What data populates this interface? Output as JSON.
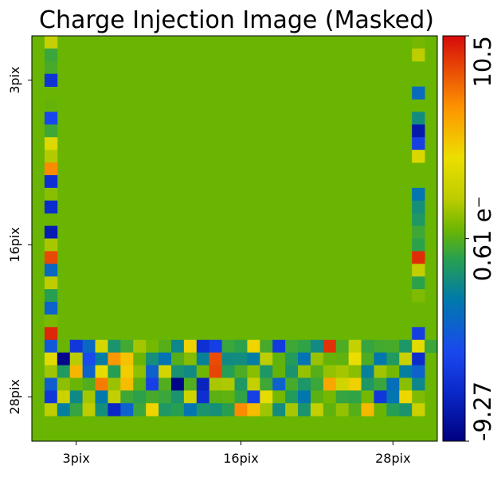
{
  "chart_data": {
    "type": "heatmap",
    "title": "Charge Injection Image (Masked)",
    "grid_size": 32,
    "x_ticks": [
      {
        "value": 3,
        "label": "3pix"
      },
      {
        "value": 16,
        "label": "16pix"
      },
      {
        "value": 28,
        "label": "28pix"
      }
    ],
    "y_ticks": [
      {
        "value": 3,
        "label": "3pix"
      },
      {
        "value": 16,
        "label": "16pix"
      },
      {
        "value": 28,
        "label": "28pix"
      }
    ],
    "colorbar": {
      "min": -9.27,
      "max": 10.5,
      "min_label": "-9.27",
      "max_label": "10.5",
      "mid_label": "0.61 e⁻",
      "mid_value": 0.61
    },
    "background_value": 0.61,
    "grid": false,
    "colors": {
      "background": "#6ab502",
      "frame": "#000000"
    },
    "rows": [
      [
        null,
        2.9,
        null,
        null,
        null,
        null,
        null,
        null,
        null,
        null,
        null,
        null,
        null,
        null,
        null,
        null,
        null,
        null,
        null,
        null,
        null,
        null,
        null,
        null,
        null,
        null,
        null,
        null,
        null,
        null,
        1.2,
        null
      ],
      [
        null,
        0.0,
        null,
        null,
        null,
        null,
        null,
        null,
        null,
        null,
        null,
        null,
        null,
        null,
        null,
        null,
        null,
        null,
        null,
        null,
        null,
        null,
        null,
        null,
        null,
        null,
        null,
        null,
        null,
        null,
        2.6,
        null
      ],
      [
        null,
        0.3,
        null,
        null,
        null,
        null,
        null,
        null,
        null,
        null,
        null,
        null,
        null,
        null,
        null,
        null,
        null,
        null,
        null,
        null,
        null,
        null,
        null,
        null,
        null,
        null,
        null,
        null,
        null,
        null,
        null,
        null
      ],
      [
        null,
        -6.2,
        null,
        null,
        null,
        null,
        null,
        null,
        null,
        null,
        null,
        null,
        null,
        null,
        null,
        null,
        null,
        null,
        null,
        null,
        null,
        null,
        null,
        null,
        null,
        null,
        null,
        null,
        null,
        null,
        null,
        null
      ],
      [
        null,
        null,
        null,
        null,
        null,
        null,
        null,
        null,
        null,
        null,
        null,
        null,
        null,
        null,
        null,
        null,
        null,
        null,
        null,
        null,
        null,
        null,
        null,
        null,
        null,
        null,
        null,
        null,
        null,
        null,
        -3.1,
        null
      ],
      [
        null,
        0.9,
        null,
        null,
        null,
        null,
        null,
        null,
        null,
        null,
        null,
        null,
        null,
        null,
        null,
        null,
        null,
        null,
        null,
        null,
        null,
        null,
        null,
        null,
        null,
        null,
        null,
        null,
        null,
        null,
        null,
        null
      ],
      [
        null,
        -5.0,
        null,
        null,
        null,
        null,
        null,
        null,
        null,
        null,
        null,
        null,
        null,
        null,
        null,
        null,
        null,
        null,
        null,
        null,
        null,
        null,
        null,
        null,
        null,
        null,
        null,
        null,
        null,
        null,
        -1.4,
        null
      ],
      [
        null,
        0.1,
        null,
        null,
        null,
        null,
        null,
        null,
        null,
        null,
        null,
        null,
        null,
        null,
        null,
        null,
        null,
        null,
        null,
        null,
        null,
        null,
        null,
        null,
        null,
        null,
        null,
        null,
        null,
        null,
        -7.8,
        null
      ],
      [
        null,
        3.9,
        null,
        null,
        null,
        null,
        null,
        null,
        null,
        null,
        null,
        null,
        null,
        null,
        null,
        null,
        null,
        null,
        null,
        null,
        null,
        null,
        null,
        null,
        null,
        null,
        null,
        null,
        null,
        null,
        -5.4,
        null
      ],
      [
        null,
        2.4,
        null,
        null,
        null,
        null,
        null,
        null,
        null,
        null,
        null,
        null,
        null,
        null,
        null,
        null,
        null,
        null,
        null,
        null,
        null,
        null,
        null,
        null,
        null,
        null,
        null,
        null,
        null,
        null,
        3.8,
        null
      ],
      [
        null,
        7.2,
        null,
        null,
        null,
        null,
        null,
        null,
        null,
        null,
        null,
        null,
        null,
        null,
        null,
        null,
        null,
        null,
        null,
        null,
        null,
        null,
        null,
        null,
        null,
        null,
        null,
        null,
        null,
        null,
        null,
        null
      ],
      [
        null,
        -6.4,
        null,
        null,
        null,
        null,
        null,
        null,
        null,
        null,
        null,
        null,
        null,
        null,
        null,
        null,
        null,
        null,
        null,
        null,
        null,
        null,
        null,
        null,
        null,
        null,
        null,
        null,
        null,
        null,
        null,
        null
      ],
      [
        null,
        1.6,
        null,
        null,
        null,
        null,
        null,
        null,
        null,
        null,
        null,
        null,
        null,
        null,
        null,
        null,
        null,
        null,
        null,
        null,
        null,
        null,
        null,
        null,
        null,
        null,
        null,
        null,
        null,
        null,
        -2.6,
        null
      ],
      [
        null,
        -6.6,
        null,
        null,
        null,
        null,
        null,
        null,
        null,
        null,
        null,
        null,
        null,
        null,
        null,
        null,
        null,
        null,
        null,
        null,
        null,
        null,
        null,
        null,
        null,
        null,
        null,
        null,
        null,
        null,
        -1.3,
        null
      ],
      [
        null,
        null,
        null,
        null,
        null,
        null,
        null,
        null,
        null,
        null,
        null,
        null,
        null,
        null,
        null,
        null,
        null,
        null,
        null,
        null,
        null,
        null,
        null,
        null,
        null,
        null,
        null,
        null,
        null,
        null,
        -0.8,
        null
      ],
      [
        null,
        -7.6,
        null,
        null,
        null,
        null,
        null,
        null,
        null,
        null,
        null,
        null,
        null,
        null,
        null,
        null,
        null,
        null,
        null,
        null,
        null,
        null,
        null,
        null,
        null,
        null,
        null,
        null,
        null,
        null,
        0.1,
        null
      ],
      [
        null,
        2.2,
        null,
        null,
        null,
        null,
        null,
        null,
        null,
        null,
        null,
        null,
        null,
        null,
        null,
        null,
        null,
        null,
        null,
        null,
        null,
        null,
        null,
        null,
        null,
        null,
        null,
        null,
        null,
        null,
        -0.3,
        null
      ],
      [
        null,
        8.9,
        null,
        null,
        null,
        null,
        null,
        null,
        null,
        null,
        null,
        null,
        null,
        null,
        null,
        null,
        null,
        null,
        null,
        null,
        null,
        null,
        null,
        null,
        null,
        null,
        null,
        null,
        null,
        null,
        9.6,
        null
      ],
      [
        null,
        -3.2,
        null,
        null,
        null,
        null,
        null,
        null,
        null,
        null,
        null,
        null,
        null,
        null,
        null,
        null,
        null,
        null,
        null,
        null,
        null,
        null,
        null,
        null,
        null,
        null,
        null,
        null,
        null,
        null,
        2.7,
        null
      ],
      [
        null,
        2.6,
        null,
        null,
        null,
        null,
        null,
        null,
        null,
        null,
        null,
        null,
        null,
        null,
        null,
        null,
        null,
        null,
        null,
        null,
        null,
        null,
        null,
        null,
        null,
        null,
        null,
        null,
        null,
        null,
        -0.3,
        null
      ],
      [
        null,
        -0.4,
        null,
        null,
        null,
        null,
        null,
        null,
        null,
        null,
        null,
        null,
        null,
        null,
        null,
        null,
        null,
        null,
        null,
        null,
        null,
        null,
        null,
        null,
        null,
        null,
        null,
        null,
        null,
        null,
        1.4,
        null
      ],
      [
        null,
        -3.6,
        null,
        null,
        null,
        null,
        null,
        null,
        null,
        null,
        null,
        null,
        null,
        null,
        null,
        null,
        null,
        null,
        null,
        null,
        null,
        null,
        null,
        null,
        null,
        null,
        null,
        null,
        null,
        null,
        null,
        null
      ],
      [
        null,
        1.3,
        null,
        null,
        null,
        null,
        null,
        null,
        null,
        null,
        null,
        null,
        null,
        null,
        null,
        null,
        null,
        null,
        null,
        null,
        null,
        null,
        null,
        null,
        null,
        null,
        null,
        null,
        null,
        null,
        null,
        null
      ],
      [
        null,
        9.8,
        null,
        null,
        null,
        null,
        null,
        null,
        null,
        null,
        null,
        null,
        null,
        null,
        null,
        null,
        null,
        null,
        null,
        null,
        null,
        null,
        null,
        null,
        null,
        null,
        null,
        null,
        null,
        null,
        -5.6,
        null
      ],
      [
        null,
        -4.1,
        1.0,
        -6.0,
        -3.3,
        3.6,
        -1.0,
        0.2,
        2.1,
        1.2,
        0.6,
        -1.7,
        5.0,
        -6.4,
        -5.5,
        0.0,
        -0.3,
        4.9,
        0.3,
        -5.8,
        0.1,
        -0.2,
        -1.5,
        9.5,
        0.4,
        2.9,
        -0.1,
        0.2,
        0.3,
        -0.9,
        4.2,
        0.0
      ],
      [
        null,
        4.1,
        -8.9,
        2.5,
        -4.8,
        -2.2,
        6.9,
        5.5,
        1.0,
        -1.3,
        -2.7,
        0.6,
        1.5,
        -2.0,
        8.8,
        -1.5,
        -1.4,
        -2.2,
        2.6,
        0.8,
        -0.6,
        -2.7,
        1.9,
        0.9,
        0.8,
        4.6,
        0.4,
        -2.5,
        -0.7,
        3.1,
        -6.6,
        null
      ],
      [
        null,
        2.0,
        -0.7,
        5.9,
        -3.6,
        4.3,
        -0.5,
        5.1,
        1.7,
        -3.7,
        3.5,
        -1.1,
        -1.5,
        1.1,
        9.0,
        -0.5,
        0.4,
        1.6,
        -0.9,
        0.9,
        -1.0,
        1.8,
        0.6,
        1.8,
        2.1,
        1.6,
        -2.0,
        2.0,
        1.2,
        -2.1,
        -3.6,
        null
      ],
      [
        null,
        -3.8,
        1.7,
        1.0,
        0.5,
        7.6,
        1.9,
        5.7,
        0.7,
        -5.4,
        0.5,
        -9.0,
        0.5,
        -7.2,
        2.2,
        2.3,
        -0.8,
        2.9,
        0.1,
        -3.6,
        0.3,
        -0.9,
        0.0,
        6.4,
        3.4,
        5.0,
        -0.8,
        0.0,
        -2.9,
        1.6,
        -1.7,
        null
      ],
      [
        null,
        -6.0,
        3.2,
        -1.6,
        2.1,
        -2.4,
        2.8,
        0.1,
        -0.3,
        0.3,
        0.0,
        -1.0,
        3.3,
        -6.5,
        0.7,
        0.8,
        -0.2,
        -5.4,
        4.3,
        1.2,
        -0.6,
        -2.5,
        0.7,
        1.2,
        -0.1,
        -0.2,
        1.2,
        -6.0,
        -2.6,
        4.8,
        1.4,
        null
      ],
      [
        null,
        2.6,
        -2.1,
        -0.1,
        2.6,
        -1.3,
        -7.0,
        -3.6,
        0.0,
        4.9,
        -0.8,
        -0.4,
        -2.6,
        -1.0,
        -1.3,
        -0.4,
        7.2,
        5.7,
        2.0,
        -1.4,
        2.2,
        -1.0,
        2.8,
        0.8,
        1.8,
        0.6,
        5.8,
        1.0,
        -0.5,
        -1.0,
        3.1,
        null
      ],
      [
        null,
        null,
        null,
        null,
        null,
        null,
        null,
        null,
        null,
        null,
        null,
        null,
        null,
        null,
        null,
        null,
        null,
        null,
        null,
        null,
        null,
        null,
        null,
        null,
        null,
        null,
        null,
        null,
        null,
        null,
        null,
        null
      ],
      [
        null,
        null,
        null,
        null,
        null,
        null,
        null,
        null,
        null,
        null,
        null,
        null,
        null,
        null,
        null,
        null,
        null,
        null,
        null,
        null,
        null,
        null,
        null,
        null,
        null,
        null,
        null,
        null,
        null,
        null,
        null,
        null
      ]
    ]
  }
}
